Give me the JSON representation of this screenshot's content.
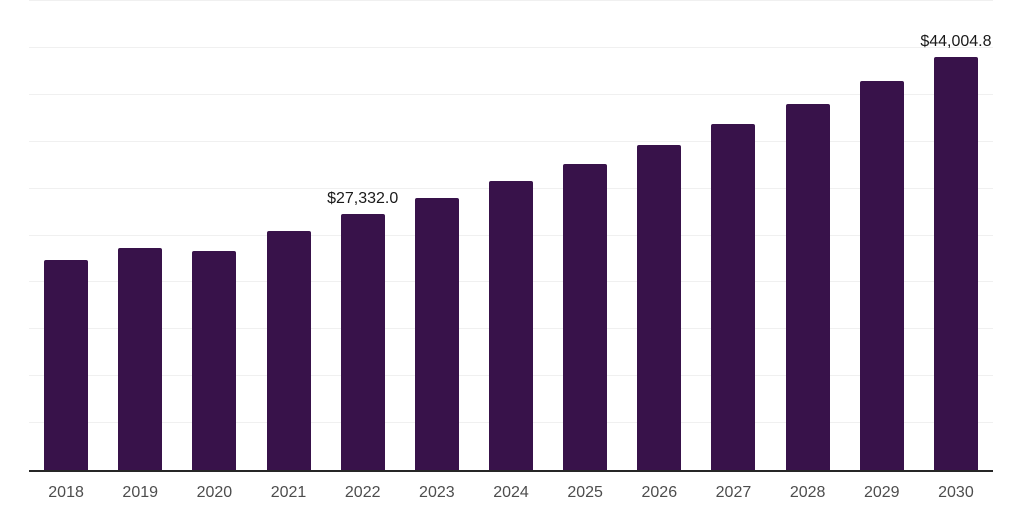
{
  "chart_data": {
    "type": "bar",
    "title": "",
    "xlabel": "",
    "ylabel": "",
    "categories": [
      "2018",
      "2019",
      "2020",
      "2021",
      "2022",
      "2023",
      "2024",
      "2025",
      "2026",
      "2027",
      "2028",
      "2029",
      "2030"
    ],
    "values": [
      22350,
      23650,
      23370,
      25500,
      27332.0,
      29050,
      30820,
      32670,
      34680,
      36860,
      39050,
      41470,
      44004.8
    ],
    "labeled_points": [
      {
        "category": "2022",
        "label": "$27,332.0"
      },
      {
        "category": "2030",
        "label": "$44,004.8"
      }
    ],
    "ylim": [
      0,
      50000
    ],
    "grid_interval": 5000,
    "grid": "horizontal",
    "legend_position": "none",
    "y_axis_tick_labels": "none",
    "colors": {
      "bar": "#38124A",
      "axis_line": "#262626",
      "gridline": "#F0F0F0",
      "tick_label": "#4D4D4D",
      "data_label": "#1A1A1A",
      "background": "#FFFFFF"
    }
  }
}
